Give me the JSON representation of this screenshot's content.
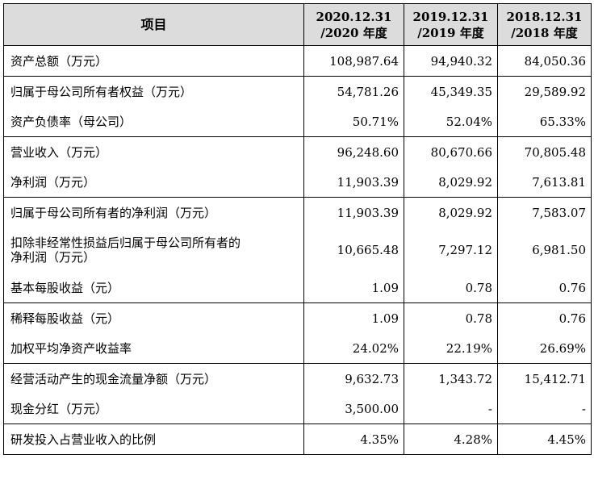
{
  "header": {
    "item": "项目",
    "periods": [
      {
        "date": "2020.12.31",
        "year": "/2020 年度"
      },
      {
        "date": "2019.12.31",
        "year": "/2019 年度"
      },
      {
        "date": "2018.12.31",
        "year": "/2018 年度"
      }
    ]
  },
  "rows": [
    {
      "label": "资产总额（万元）",
      "values": [
        "108,987.64",
        "94,940.32",
        "84,050.36"
      ]
    },
    {
      "label": "归属于母公司所有者权益（万元）",
      "values": [
        "54,781.26",
        "45,349.35",
        "29,589.92"
      ]
    },
    {
      "label": "资产负债率（母公司）",
      "values": [
        "50.71%",
        "52.04%",
        "65.33%"
      ]
    },
    {
      "label": "营业收入（万元）",
      "values": [
        "96,248.60",
        "80,670.66",
        "70,805.48"
      ]
    },
    {
      "label": "净利润（万元）",
      "values": [
        "11,903.39",
        "8,029.92",
        "7,613.81"
      ]
    },
    {
      "label": "归属于母公司所有者的净利润（万元）",
      "values": [
        "11,903.39",
        "8,029.92",
        "7,583.07"
      ]
    },
    {
      "label_line1": "扣除非经常性损益后归属于母公司所有者的",
      "label_line2": "净利润（万元）",
      "values": [
        "10,665.48",
        "7,297.12",
        "6,981.50"
      ]
    },
    {
      "label": "基本每股收益（元）",
      "values": [
        "1.09",
        "0.78",
        "0.76"
      ]
    },
    {
      "label": "稀释每股收益（元）",
      "values": [
        "1.09",
        "0.78",
        "0.76"
      ]
    },
    {
      "label": "加权平均净资产收益率",
      "values": [
        "24.02%",
        "22.19%",
        "26.69%"
      ]
    },
    {
      "label": "经营活动产生的现金流量净额（万元）",
      "values": [
        "9,632.73",
        "1,343.72",
        "15,412.71"
      ]
    },
    {
      "label": "现金分红（万元）",
      "values": [
        "3,500.00",
        "-",
        "-"
      ]
    },
    {
      "label": "研发投入占营业收入的比例",
      "values": [
        "4.35%",
        "4.28%",
        "4.45%"
      ]
    }
  ]
}
